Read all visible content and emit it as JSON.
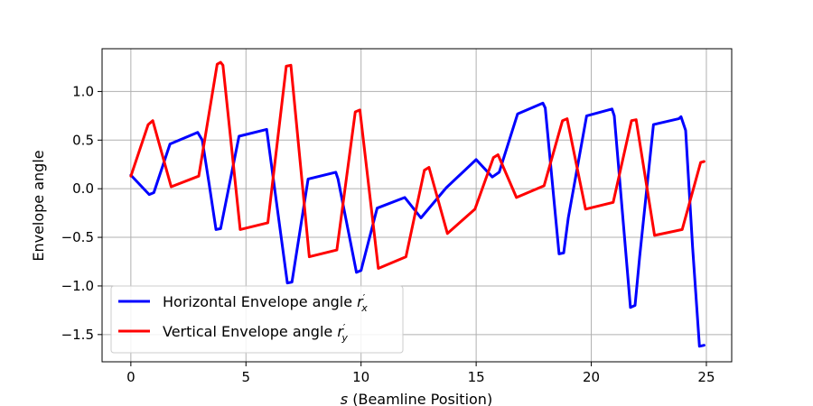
{
  "chart_data": {
    "type": "line",
    "title": "",
    "xlabel": "s (Beamline Position)",
    "xlabel_symbol": "s",
    "xlabel_rest": " (Beamline Position)",
    "ylabel": "Envelope angle",
    "xlim": [
      -1.25,
      26.1
    ],
    "ylim": [
      -1.78,
      1.44
    ],
    "x_ticks": [
      0,
      5,
      10,
      15,
      20,
      25
    ],
    "x_tick_labels": [
      "0",
      "5",
      "10",
      "15",
      "20",
      "25"
    ],
    "y_ticks": [
      -1.5,
      -1.0,
      -0.5,
      0.0,
      0.5,
      1.0
    ],
    "y_tick_labels": [
      "−1.5",
      "−1.0",
      "−0.5",
      "0.0",
      "0.5",
      "1.0"
    ],
    "grid": true,
    "legend_position": "lower-left",
    "series": [
      {
        "name": "Horizontal Envelope angle r′x",
        "legend_main": "Horizontal Envelope angle ",
        "legend_symbol": "r",
        "legend_prime": "′",
        "legend_sub": "x",
        "color": "#0000ff",
        "x": [
          0,
          0.4,
          0.8,
          1.0,
          1.7,
          2.9,
          3.1,
          3.4,
          3.7,
          3.9,
          4.7,
          5.9,
          6.8,
          7.0,
          7.7,
          8.9,
          9.0,
          9.8,
          10.0,
          10.7,
          11.9,
          12.6,
          13.7,
          15.0,
          15.7,
          16.0,
          16.8,
          17.9,
          18.0,
          18.6,
          18.8,
          19.0,
          19.8,
          20.9,
          21.0,
          21.7,
          21.9,
          22.1,
          22.7,
          23.8,
          23.9,
          24.1,
          24.4,
          24.7,
          24.9
        ],
        "y": [
          0.14,
          0.04,
          -0.06,
          -0.04,
          0.46,
          0.58,
          0.5,
          0.05,
          -0.42,
          -0.41,
          0.54,
          0.61,
          -0.97,
          -0.96,
          0.1,
          0.17,
          0.1,
          -0.86,
          -0.84,
          -0.2,
          -0.09,
          -0.3,
          0.01,
          0.3,
          0.12,
          0.17,
          0.77,
          0.88,
          0.83,
          -0.67,
          -0.66,
          -0.3,
          0.75,
          0.82,
          0.75,
          -1.22,
          -1.2,
          -0.7,
          0.66,
          0.72,
          0.74,
          0.6,
          -0.6,
          -1.62,
          -1.61
        ]
      },
      {
        "name": "Vertical Envelope angle r′y",
        "legend_main": "Vertical Envelope angle ",
        "legend_symbol": "r",
        "legend_prime": "′",
        "legend_sub": "y",
        "color": "#ff0000",
        "x": [
          0,
          0.75,
          0.95,
          1.75,
          2.95,
          3.75,
          3.9,
          4.0,
          4.75,
          5.95,
          6.75,
          6.95,
          7.75,
          8.95,
          9.75,
          9.95,
          10.75,
          11.95,
          12.75,
          12.95,
          13.75,
          14.95,
          15.75,
          15.95,
          16.75,
          17.95,
          18.75,
          18.95,
          19.75,
          20.95,
          21.75,
          21.95,
          22.75,
          23.95,
          24.75,
          24.9
        ],
        "y": [
          0.13,
          0.66,
          0.7,
          0.02,
          0.13,
          1.28,
          1.3,
          1.27,
          -0.42,
          -0.35,
          1.26,
          1.27,
          -0.7,
          -0.63,
          0.79,
          0.81,
          -0.82,
          -0.7,
          0.19,
          0.22,
          -0.46,
          -0.21,
          0.32,
          0.35,
          -0.09,
          0.03,
          0.7,
          0.72,
          -0.21,
          -0.14,
          0.7,
          0.71,
          -0.48,
          -0.42,
          0.27,
          0.28
        ]
      }
    ]
  }
}
